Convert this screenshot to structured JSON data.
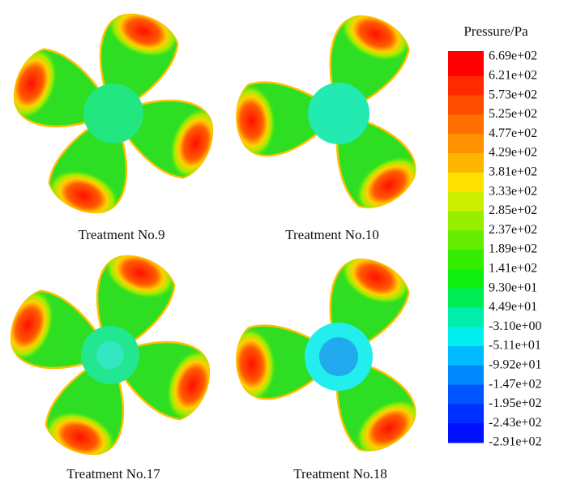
{
  "panels": [
    {
      "caption": "Treatment No.9"
    },
    {
      "caption": "Treatment No.10"
    },
    {
      "caption": "Treatment No.17"
    },
    {
      "caption": "Treatment No.18"
    }
  ],
  "legend": {
    "title": "Pressure/Pa",
    "levels": [
      "6.69e+02",
      "6.21e+02",
      "5.73e+02",
      "5.25e+02",
      "4.77e+02",
      "4.29e+02",
      "3.81e+02",
      "3.33e+02",
      "2.85e+02",
      "2.37e+02",
      "1.89e+02",
      "1.41e+02",
      "9.30e+01",
      "4.49e+01",
      "-3.10e+00",
      "-5.11e+01",
      "-9.92e+01",
      "-1.47e+02",
      "-1.95e+02",
      "-2.43e+02",
      "-2.91e+02"
    ],
    "colors": [
      "#ff0000",
      "#ff2a00",
      "#ff4d00",
      "#ff7000",
      "#ff9200",
      "#ffb400",
      "#ffe000",
      "#ccf000",
      "#99ee00",
      "#66ee00",
      "#33ee00",
      "#11ee11",
      "#00ee55",
      "#00eeaa",
      "#00eeee",
      "#00bbff",
      "#0088ff",
      "#0055ff",
      "#0030ff",
      "#0010ff"
    ]
  }
}
